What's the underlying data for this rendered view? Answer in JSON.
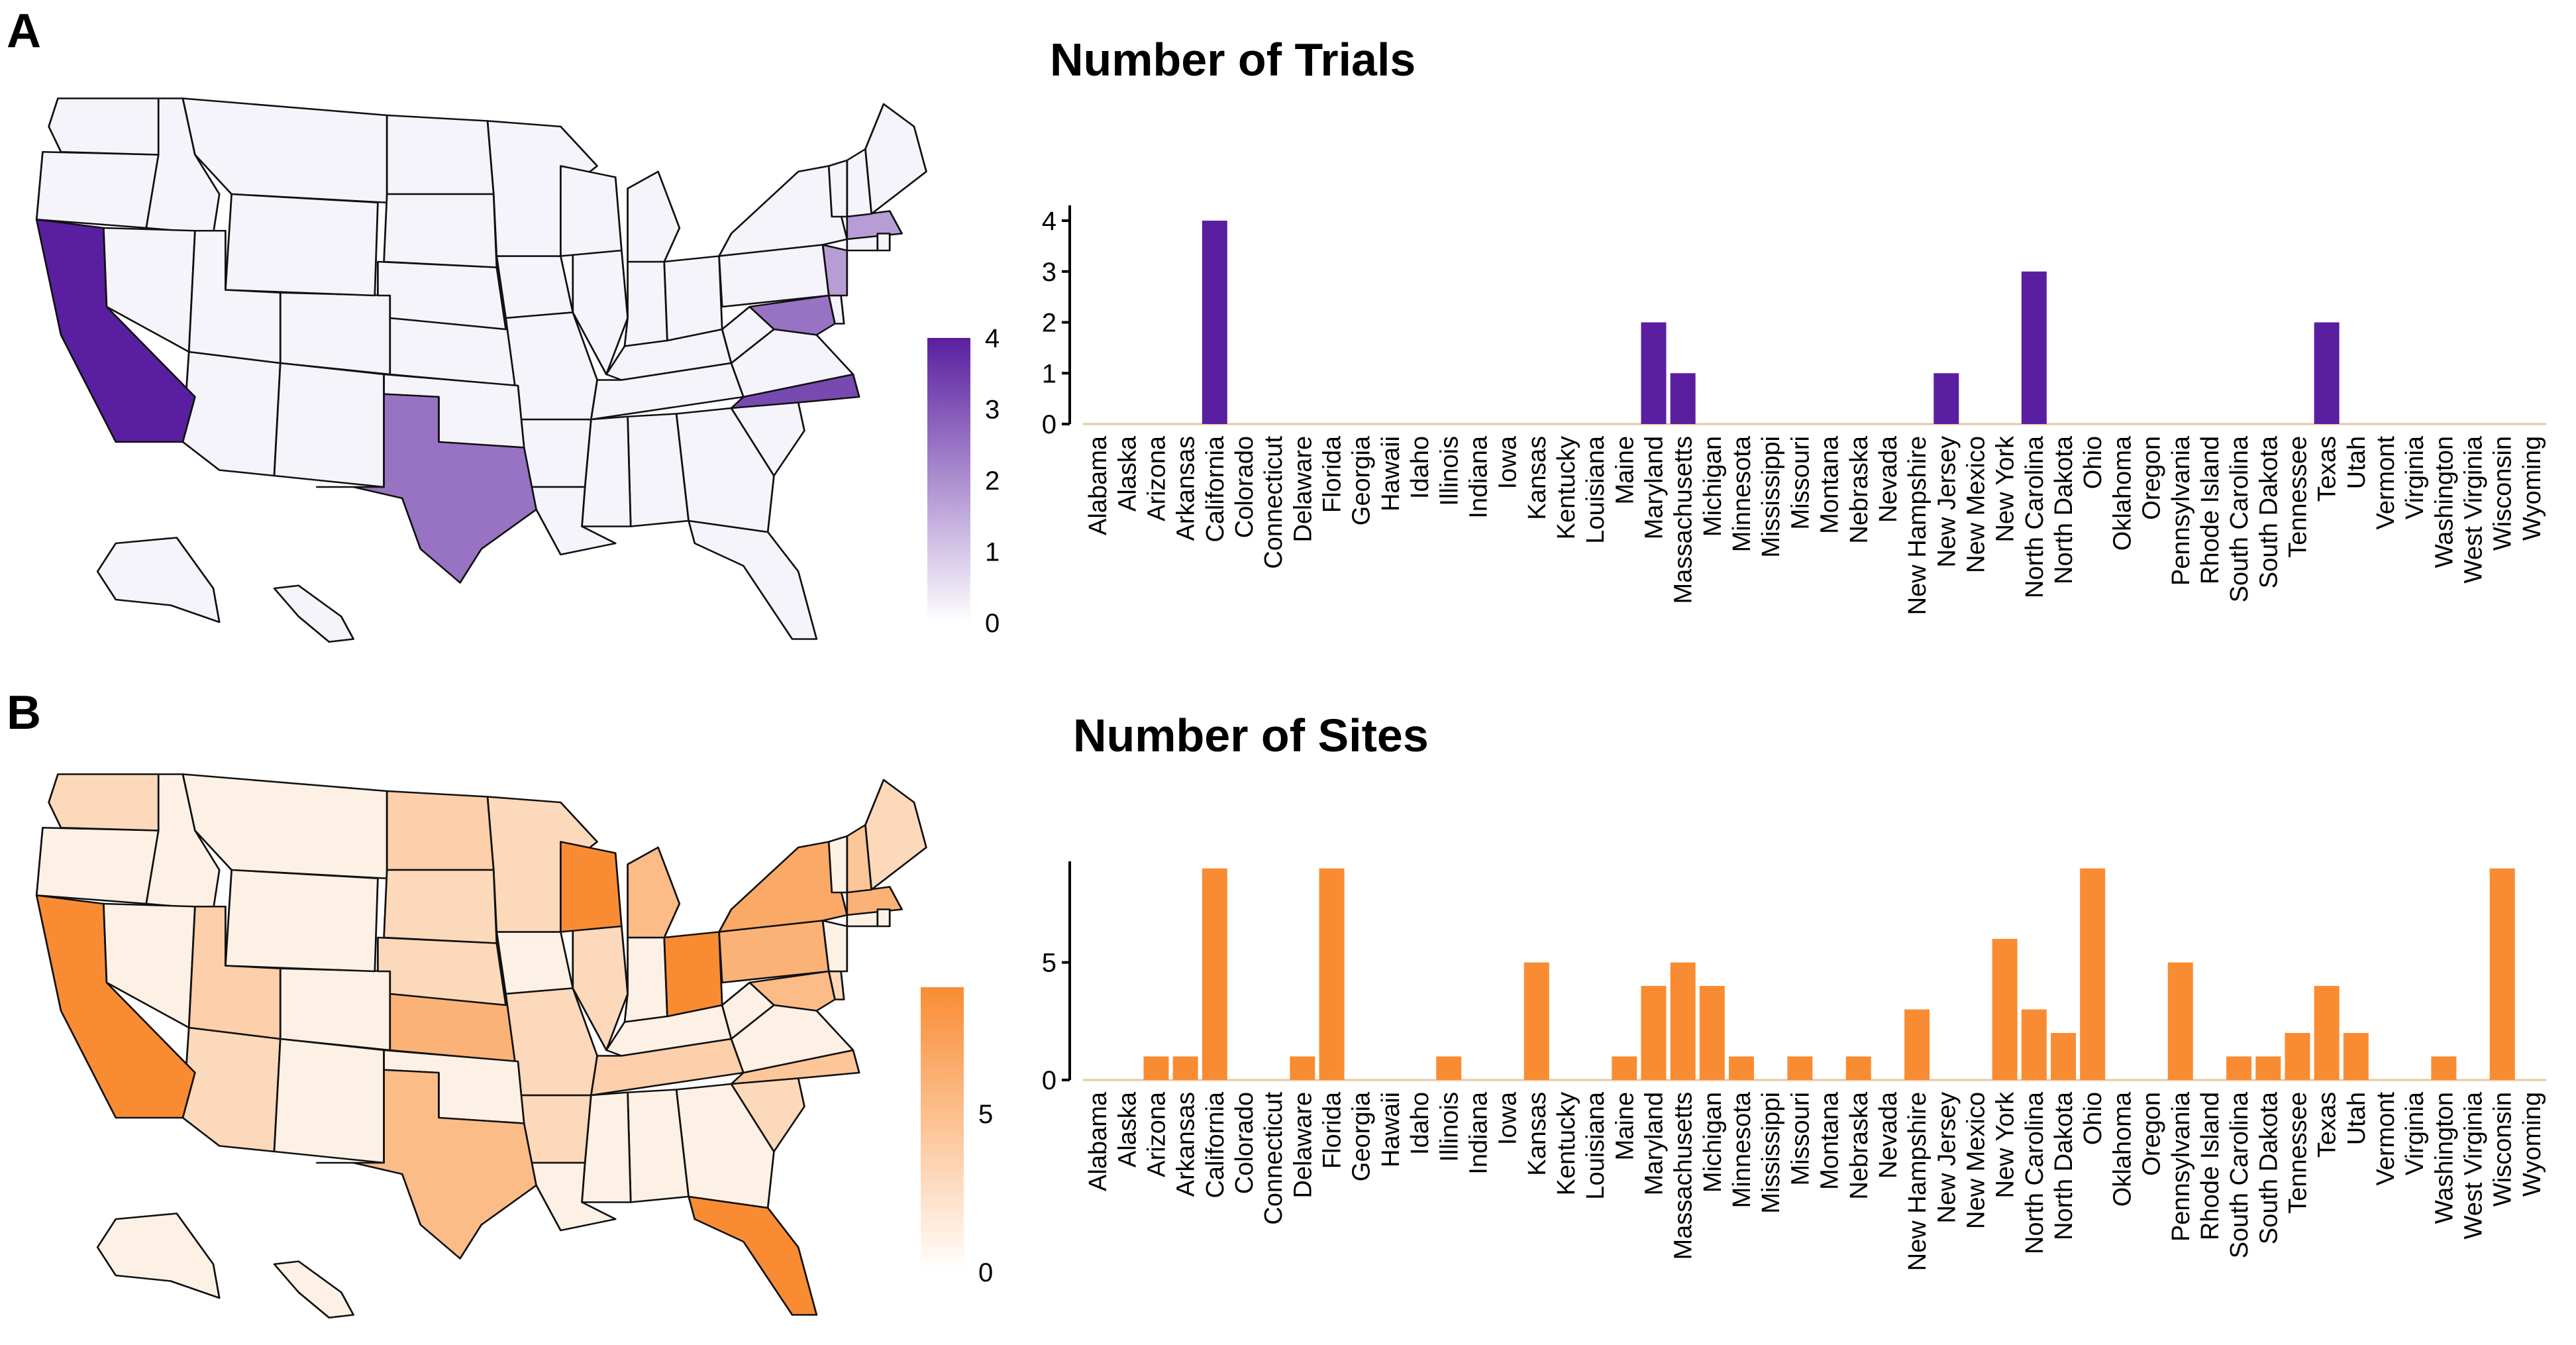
{
  "panels": [
    {
      "label": "A",
      "title": "Number of Trials"
    },
    {
      "label": "B",
      "title": "Number of Sites"
    }
  ],
  "colors": {
    "trials_fill": "#5a1fa0",
    "trials_light": "#f6f4fb",
    "sites_fill": "#f98c33",
    "sites_light": "#fdf1e5",
    "state_border": "#111111"
  },
  "map_legends": [
    {
      "panel": "A",
      "ticks": [
        "0",
        "1",
        "2",
        "3",
        "4"
      ],
      "range": [
        0,
        4
      ]
    },
    {
      "panel": "B",
      "ticks": [
        "0",
        "5"
      ],
      "range": [
        0,
        9
      ]
    }
  ],
  "chart_data": [
    {
      "type": "bar",
      "title": "Number of Trials",
      "xlabel": "",
      "ylabel": "",
      "ylim": [
        0,
        4.3
      ],
      "yticks": [
        0,
        1,
        2,
        3,
        4
      ],
      "categories": [
        "Alabama",
        "Alaska",
        "Arizona",
        "Arkansas",
        "California",
        "Colorado",
        "Connecticut",
        "Delaware",
        "Florida",
        "Georgia",
        "Hawaii",
        "Idaho",
        "Illinois",
        "Indiana",
        "Iowa",
        "Kansas",
        "Kentucky",
        "Louisiana",
        "Maine",
        "Maryland",
        "Massachusetts",
        "Michigan",
        "Minnesota",
        "Mississippi",
        "Missouri",
        "Montana",
        "Nebraska",
        "Nevada",
        "New Hampshire",
        "New Jersey",
        "New Mexico",
        "New York",
        "North Carolina",
        "North Dakota",
        "Ohio",
        "Oklahoma",
        "Oregon",
        "Pennsylvania",
        "Rhode Island",
        "South Carolina",
        "South Dakota",
        "Tennessee",
        "Texas",
        "Utah",
        "Vermont",
        "Virginia",
        "Washington",
        "West Virginia",
        "Wisconsin",
        "Wyoming"
      ],
      "values": [
        0,
        0,
        0,
        0,
        4,
        0,
        0,
        0,
        0,
        0,
        0,
        0,
        0,
        0,
        0,
        0,
        0,
        0,
        0,
        2,
        1,
        0,
        0,
        0,
        0,
        0,
        0,
        0,
        0,
        1,
        0,
        0,
        3,
        0,
        0,
        0,
        0,
        0,
        0,
        0,
        0,
        0,
        2,
        0,
        0,
        0,
        0,
        0,
        0,
        0
      ]
    },
    {
      "type": "bar",
      "title": "Number of Sites",
      "xlabel": "",
      "ylabel": "",
      "ylim": [
        0,
        9.3
      ],
      "yticks": [
        0,
        5
      ],
      "categories": [
        "Alabama",
        "Alaska",
        "Arizona",
        "Arkansas",
        "California",
        "Colorado",
        "Connecticut",
        "Delaware",
        "Florida",
        "Georgia",
        "Hawaii",
        "Idaho",
        "Illinois",
        "Indiana",
        "Iowa",
        "Kansas",
        "Kentucky",
        "Louisiana",
        "Maine",
        "Maryland",
        "Massachusetts",
        "Michigan",
        "Minnesota",
        "Mississippi",
        "Missouri",
        "Montana",
        "Nebraska",
        "Nevada",
        "New Hampshire",
        "New Jersey",
        "New Mexico",
        "New York",
        "North Carolina",
        "North Dakota",
        "Ohio",
        "Oklahoma",
        "Oregon",
        "Pennsylvania",
        "Rhode Island",
        "South Carolina",
        "South Dakota",
        "Tennessee",
        "Texas",
        "Utah",
        "Vermont",
        "Virginia",
        "Washington",
        "West Virginia",
        "Wisconsin",
        "Wyoming"
      ],
      "values": [
        0,
        0,
        1,
        1,
        9,
        0,
        0,
        1,
        9,
        0,
        0,
        0,
        1,
        0,
        0,
        5,
        0,
        0,
        1,
        4,
        5,
        4,
        1,
        0,
        1,
        0,
        1,
        0,
        3,
        0,
        0,
        6,
        3,
        2,
        9,
        0,
        0,
        5,
        0,
        1,
        1,
        2,
        4,
        2,
        0,
        0,
        1,
        0,
        9,
        0
      ]
    }
  ]
}
